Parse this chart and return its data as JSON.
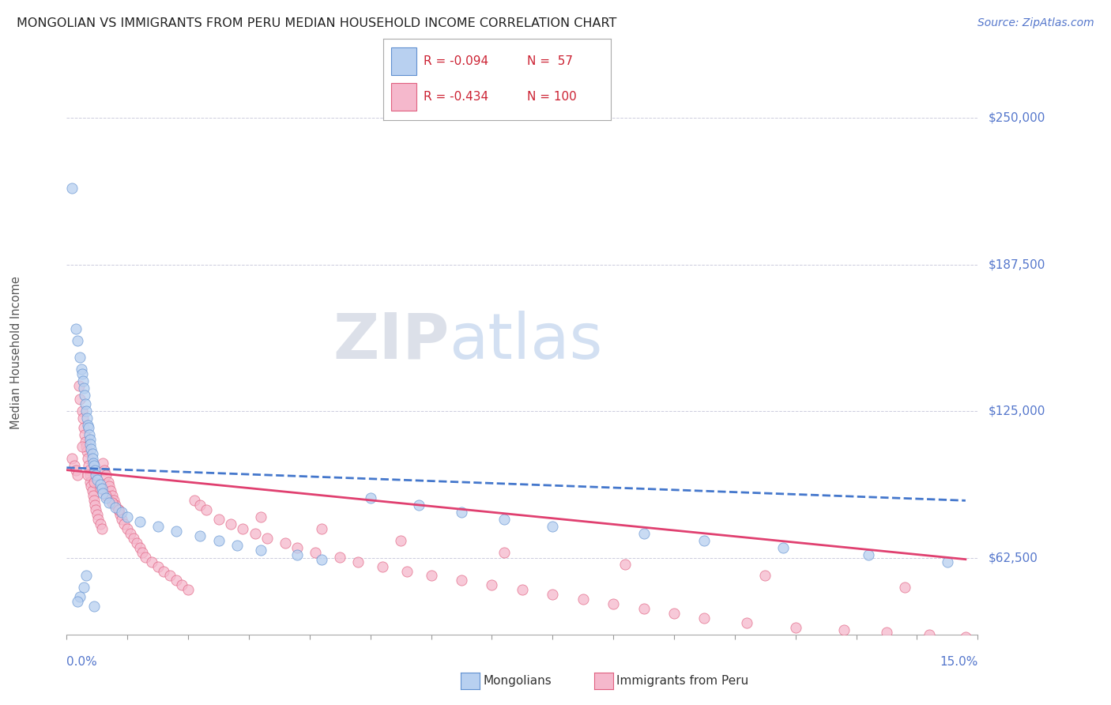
{
  "title": "MONGOLIAN VS IMMIGRANTS FROM PERU MEDIAN HOUSEHOLD INCOME CORRELATION CHART",
  "source": "Source: ZipAtlas.com",
  "ylabel": "Median Household Income",
  "xlim": [
    0.0,
    15.0
  ],
  "ylim": [
    30000,
    270000
  ],
  "ytick_values": [
    62500,
    125000,
    187500,
    250000
  ],
  "ytick_labels": [
    "$62,500",
    "$125,000",
    "$187,500",
    "$250,000"
  ],
  "mongolian_color": "#b8d0f0",
  "mongolian_edge": "#6090d0",
  "peru_color": "#f5b8cc",
  "peru_edge": "#e06080",
  "mongolian_trend_color": "#4477cc",
  "peru_trend_color": "#e04070",
  "legend1_r": "R = -0.094",
  "legend1_n": "N =  57",
  "legend2_r": "R = -0.434",
  "legend2_n": "N = 100",
  "bottom_legend_mongolians": "Mongolians",
  "bottom_legend_peru": "Immigrants from Peru",
  "mongolian_trend_x": [
    0.0,
    14.8
  ],
  "mongolian_trend_y": [
    101000,
    87000
  ],
  "peru_trend_x": [
    0.0,
    14.8
  ],
  "peru_trend_y": [
    100000,
    62000
  ],
  "mongolian_x": [
    0.08,
    0.15,
    0.18,
    0.22,
    0.24,
    0.25,
    0.27,
    0.28,
    0.3,
    0.31,
    0.32,
    0.34,
    0.35,
    0.36,
    0.37,
    0.38,
    0.39,
    0.4,
    0.42,
    0.43,
    0.44,
    0.45,
    0.47,
    0.48,
    0.5,
    0.55,
    0.58,
    0.6,
    0.65,
    0.7,
    0.8,
    0.9,
    1.0,
    1.2,
    1.5,
    1.8,
    2.2,
    2.5,
    2.8,
    3.2,
    3.8,
    4.2,
    5.0,
    5.8,
    6.5,
    7.2,
    8.0,
    9.5,
    10.5,
    11.8,
    13.2,
    14.5,
    0.32,
    0.28,
    0.22,
    0.18,
    0.45
  ],
  "mongolian_y": [
    220000,
    160000,
    155000,
    148000,
    143000,
    141000,
    138000,
    135000,
    132000,
    128000,
    125000,
    122000,
    119000,
    118000,
    115000,
    113000,
    111000,
    109000,
    107000,
    105000,
    103000,
    102000,
    100000,
    98000,
    96000,
    94000,
    92000,
    90000,
    88000,
    86000,
    84000,
    82000,
    80000,
    78000,
    76000,
    74000,
    72000,
    70000,
    68000,
    66000,
    64000,
    62000,
    88000,
    85000,
    82000,
    79000,
    76000,
    73000,
    70000,
    67000,
    64000,
    61000,
    55000,
    50000,
    46000,
    44000,
    42000
  ],
  "peru_x": [
    0.08,
    0.12,
    0.15,
    0.18,
    0.2,
    0.22,
    0.25,
    0.27,
    0.28,
    0.3,
    0.31,
    0.32,
    0.34,
    0.35,
    0.36,
    0.37,
    0.38,
    0.39,
    0.4,
    0.42,
    0.44,
    0.45,
    0.47,
    0.48,
    0.5,
    0.52,
    0.55,
    0.58,
    0.6,
    0.62,
    0.65,
    0.68,
    0.7,
    0.73,
    0.75,
    0.78,
    0.8,
    0.85,
    0.88,
    0.9,
    0.95,
    1.0,
    1.05,
    1.1,
    1.15,
    1.2,
    1.25,
    1.3,
    1.4,
    1.5,
    1.6,
    1.7,
    1.8,
    1.9,
    2.0,
    2.1,
    2.2,
    2.3,
    2.5,
    2.7,
    2.9,
    3.1,
    3.3,
    3.6,
    3.8,
    4.1,
    4.5,
    4.8,
    5.2,
    5.6,
    6.0,
    6.5,
    7.0,
    7.5,
    8.0,
    8.5,
    9.0,
    9.5,
    10.0,
    10.5,
    11.2,
    12.0,
    12.8,
    13.5,
    14.2,
    14.8,
    0.35,
    0.45,
    0.55,
    0.65,
    0.75,
    0.85,
    3.2,
    4.2,
    5.5,
    7.2,
    9.2,
    11.5,
    13.8,
    0.25
  ],
  "peru_y": [
    105000,
    102000,
    100000,
    98000,
    136000,
    130000,
    125000,
    122000,
    118000,
    115000,
    112000,
    110000,
    108000,
    105000,
    102000,
    100000,
    98000,
    95000,
    93000,
    91000,
    89000,
    87000,
    85000,
    83000,
    81000,
    79000,
    77000,
    75000,
    103000,
    100000,
    98000,
    95000,
    93000,
    91000,
    89000,
    87000,
    85000,
    83000,
    81000,
    79000,
    77000,
    75000,
    73000,
    71000,
    69000,
    67000,
    65000,
    63000,
    61000,
    59000,
    57000,
    55000,
    53000,
    51000,
    49000,
    87000,
    85000,
    83000,
    79000,
    77000,
    75000,
    73000,
    71000,
    69000,
    67000,
    65000,
    63000,
    61000,
    59000,
    57000,
    55000,
    53000,
    51000,
    49000,
    47000,
    45000,
    43000,
    41000,
    39000,
    37000,
    35000,
    33000,
    32000,
    31000,
    30000,
    29000,
    98000,
    95000,
    92000,
    89000,
    86000,
    83000,
    80000,
    75000,
    70000,
    65000,
    60000,
    55000,
    50000,
    110000
  ]
}
